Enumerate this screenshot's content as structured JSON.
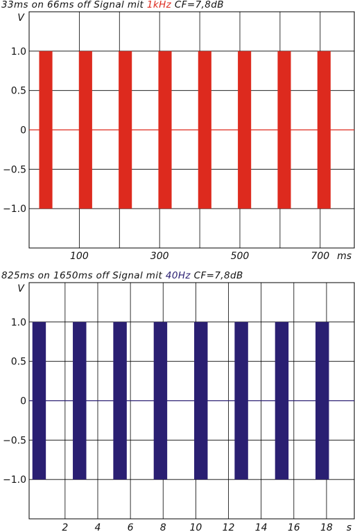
{
  "colors": {
    "chart1_signal": "#dd2a1e",
    "chart2_signal": "#2a1f72",
    "grid": "#000000"
  },
  "chart_data": [
    {
      "type": "line",
      "title": {
        "prefix": "33ms on 66ms off Signal mit ",
        "highlight": "1kHz",
        "suffix": " CF=7,8dB"
      },
      "ylabel": "V",
      "xunit": "ms",
      "xlim": [
        -25,
        785
      ],
      "ylim": [
        -1.5,
        1.5
      ],
      "x_ticks": [
        100,
        200,
        300,
        400,
        500,
        600,
        700
      ],
      "x_tick_labels": [
        "100",
        "300",
        "500",
        "700"
      ],
      "x_tick_label_values": [
        100,
        300,
        500,
        700
      ],
      "y_ticks": [
        -1.5,
        -1.0,
        -0.5,
        0,
        0.5,
        1.0,
        1.5
      ],
      "y_tick_labels": [
        "1.0",
        "0.5",
        "0",
        "-0.5",
        "-1.0"
      ],
      "y_tick_label_values": [
        1.0,
        0.5,
        0,
        -0.5,
        -1.0
      ],
      "amplitude": 1.0,
      "bursts": [
        {
          "start": 0,
          "end": 33
        },
        {
          "start": 99,
          "end": 132
        },
        {
          "start": 198,
          "end": 231
        },
        {
          "start": 297,
          "end": 330
        },
        {
          "start": 396,
          "end": 429
        },
        {
          "start": 495,
          "end": 528
        },
        {
          "start": 594,
          "end": 627
        },
        {
          "start": 693,
          "end": 726
        }
      ],
      "grid": true
    },
    {
      "type": "line",
      "title": {
        "prefix": "825ms on 1650ms off Signal mit ",
        "highlight": "40Hz",
        "suffix": " CF=7,8dB"
      },
      "ylabel": "V",
      "xunit": "s",
      "xlim": [
        -0.2,
        19.7
      ],
      "ylim": [
        -1.5,
        1.5
      ],
      "x_ticks": [
        2,
        4,
        6,
        8,
        10,
        12,
        14,
        16,
        18
      ],
      "x_tick_labels": [
        "2",
        "4",
        "6",
        "8",
        "10",
        "12",
        "14",
        "16",
        "18"
      ],
      "x_tick_label_values": [
        2,
        4,
        6,
        8,
        10,
        12,
        14,
        16,
        18
      ],
      "y_ticks": [
        -1.5,
        -1.0,
        -0.5,
        0,
        0.5,
        1.0,
        1.5
      ],
      "y_tick_labels": [
        "1.0",
        "0.5",
        "0",
        "-0.5",
        "-1.0"
      ],
      "y_tick_label_values": [
        1.0,
        0.5,
        0,
        -0.5,
        -1.0
      ],
      "amplitude": 1.0,
      "bursts": [
        {
          "start": 0.0,
          "end": 0.825
        },
        {
          "start": 2.475,
          "end": 3.3
        },
        {
          "start": 4.95,
          "end": 5.775
        },
        {
          "start": 7.425,
          "end": 8.25
        },
        {
          "start": 9.9,
          "end": 10.725
        },
        {
          "start": 12.375,
          "end": 13.2
        },
        {
          "start": 14.85,
          "end": 15.675
        },
        {
          "start": 17.325,
          "end": 18.15
        }
      ],
      "grid": true
    }
  ]
}
